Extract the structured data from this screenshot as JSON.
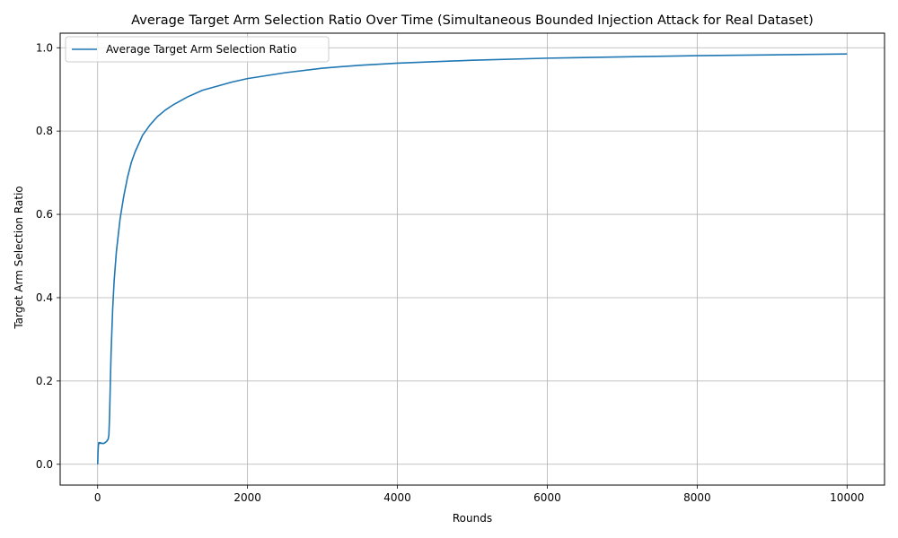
{
  "chart_data": {
    "type": "line",
    "title": "Average Target Arm Selection Ratio Over Time (Simultaneous Bounded Injection Attack for Real Dataset)",
    "xlabel": "Rounds",
    "ylabel": "Target Arm Selection Ratio",
    "xlim": [
      -500,
      10500
    ],
    "ylim": [
      -0.05,
      1.035
    ],
    "xticks": [
      0,
      2000,
      4000,
      6000,
      8000,
      10000
    ],
    "xtick_labels": [
      "0",
      "2000",
      "4000",
      "6000",
      "8000",
      "10000"
    ],
    "yticks": [
      0.0,
      0.2,
      0.4,
      0.6,
      0.8,
      1.0
    ],
    "ytick_labels": [
      "0.0",
      "0.2",
      "0.4",
      "0.6",
      "0.8",
      "1.0"
    ],
    "grid": true,
    "legend_position": "top-left",
    "series": [
      {
        "name": "Average Target Arm Selection Ratio",
        "color": "#1f77b4",
        "x": [
          1,
          5,
          10,
          15,
          20,
          30,
          40,
          50,
          60,
          80,
          100,
          120,
          140,
          150,
          160,
          170,
          180,
          190,
          200,
          220,
          250,
          300,
          350,
          400,
          450,
          500,
          600,
          700,
          800,
          900,
          1000,
          1200,
          1400,
          1600,
          1800,
          2000,
          2500,
          3000,
          3500,
          4000,
          5000,
          6000,
          7000,
          8000,
          9000,
          10000
        ],
        "y": [
          0.0,
          0.03,
          0.045,
          0.052,
          0.05,
          0.052,
          0.05,
          0.051,
          0.05,
          0.05,
          0.052,
          0.055,
          0.06,
          0.07,
          0.12,
          0.2,
          0.27,
          0.32,
          0.37,
          0.44,
          0.51,
          0.59,
          0.645,
          0.69,
          0.725,
          0.75,
          0.79,
          0.815,
          0.835,
          0.85,
          0.862,
          0.882,
          0.898,
          0.908,
          0.918,
          0.926,
          0.94,
          0.951,
          0.958,
          0.963,
          0.97,
          0.975,
          0.978,
          0.981,
          0.983,
          0.985
        ]
      }
    ]
  }
}
